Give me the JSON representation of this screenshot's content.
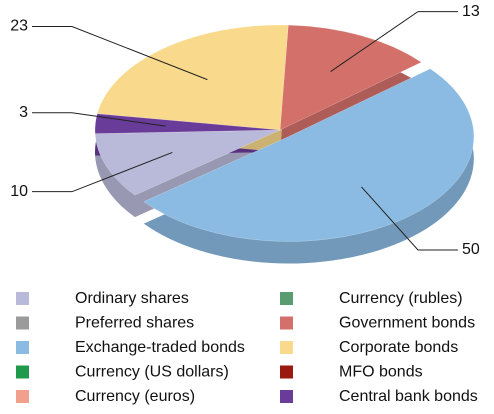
{
  "chart_data": {
    "type": "pie",
    "categories": [
      "Ordinary shares",
      "Preferred shares",
      "Exchange-traded bonds",
      "Currency (US dollars)",
      "Currency (euros)",
      "Currency (rubles)",
      "Government bonds",
      "Corporate bonds",
      "MFO bonds",
      "Central bank bonds"
    ],
    "values": [
      10,
      0,
      50,
      0,
      0,
      0,
      13,
      23,
      0,
      3
    ],
    "colors": [
      "#b9b9d9",
      "#9b9b9b",
      "#8bbbe3",
      "#1f9a4c",
      "#f2a08e",
      "#5b9b72",
      "#d4706a",
      "#f9d98b",
      "#9a1a10",
      "#6a3c9a"
    ],
    "exploded": 2,
    "three_d": true
  }
}
